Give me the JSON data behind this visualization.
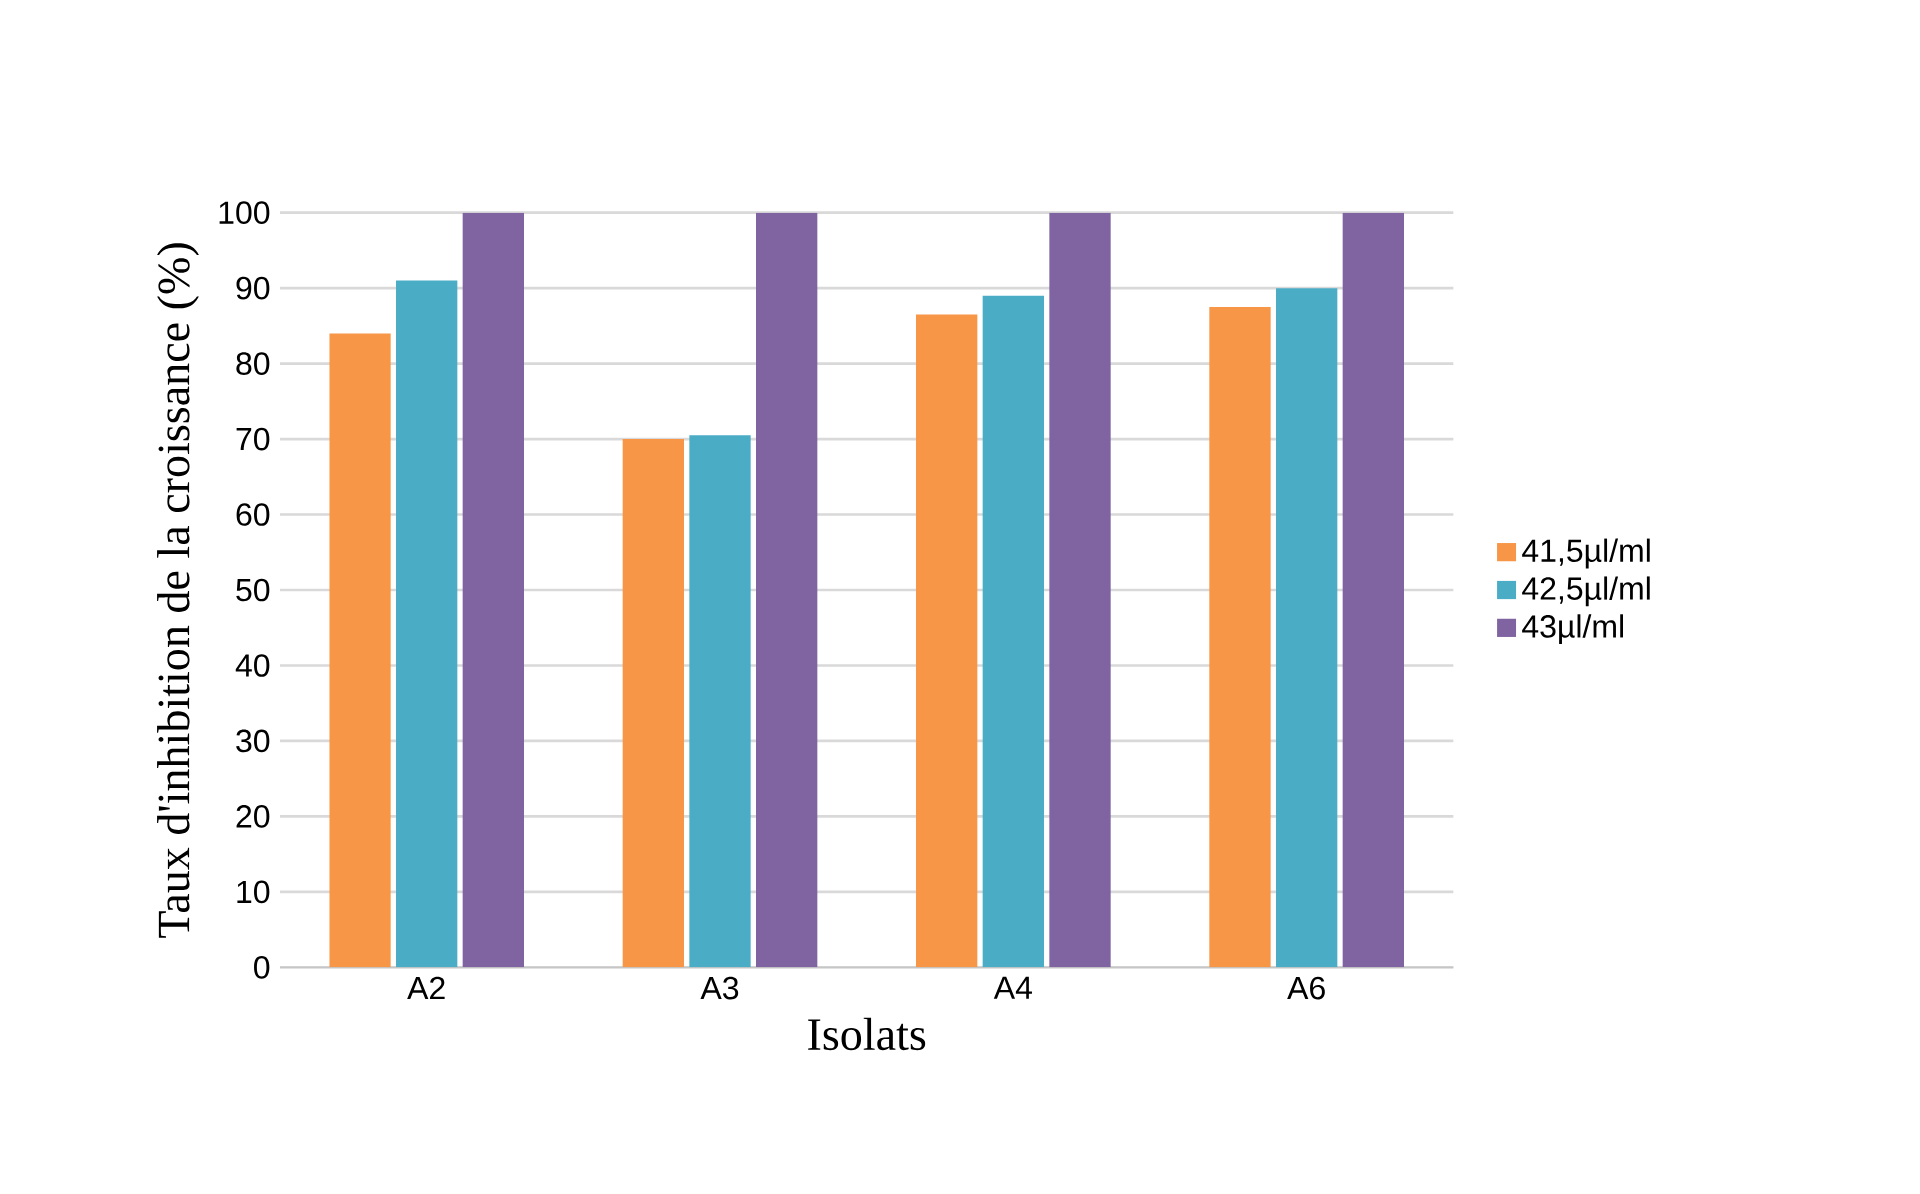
{
  "chart_data": {
    "type": "bar",
    "xlabel": "Isolats",
    "ylabel": "Taux d'inhibition de la croissance (%)",
    "categories": [
      "A2",
      "A3",
      "A4",
      "A6"
    ],
    "series": [
      {
        "name": "41,5µl/ml",
        "color": "#f79646",
        "values": [
          84,
          70,
          86.5,
          87.5
        ]
      },
      {
        "name": "42,5µl/ml",
        "color": "#4bacc6",
        "values": [
          91,
          70.5,
          89,
          90
        ]
      },
      {
        "name": "43µl/ml",
        "color": "#8064a2",
        "values": [
          100,
          100,
          100,
          100
        ]
      }
    ],
    "ylim": [
      0,
      100
    ],
    "yticks": [
      0,
      10,
      20,
      30,
      40,
      50,
      60,
      70,
      80,
      90,
      100
    ],
    "grid": "y",
    "legend": "right"
  }
}
